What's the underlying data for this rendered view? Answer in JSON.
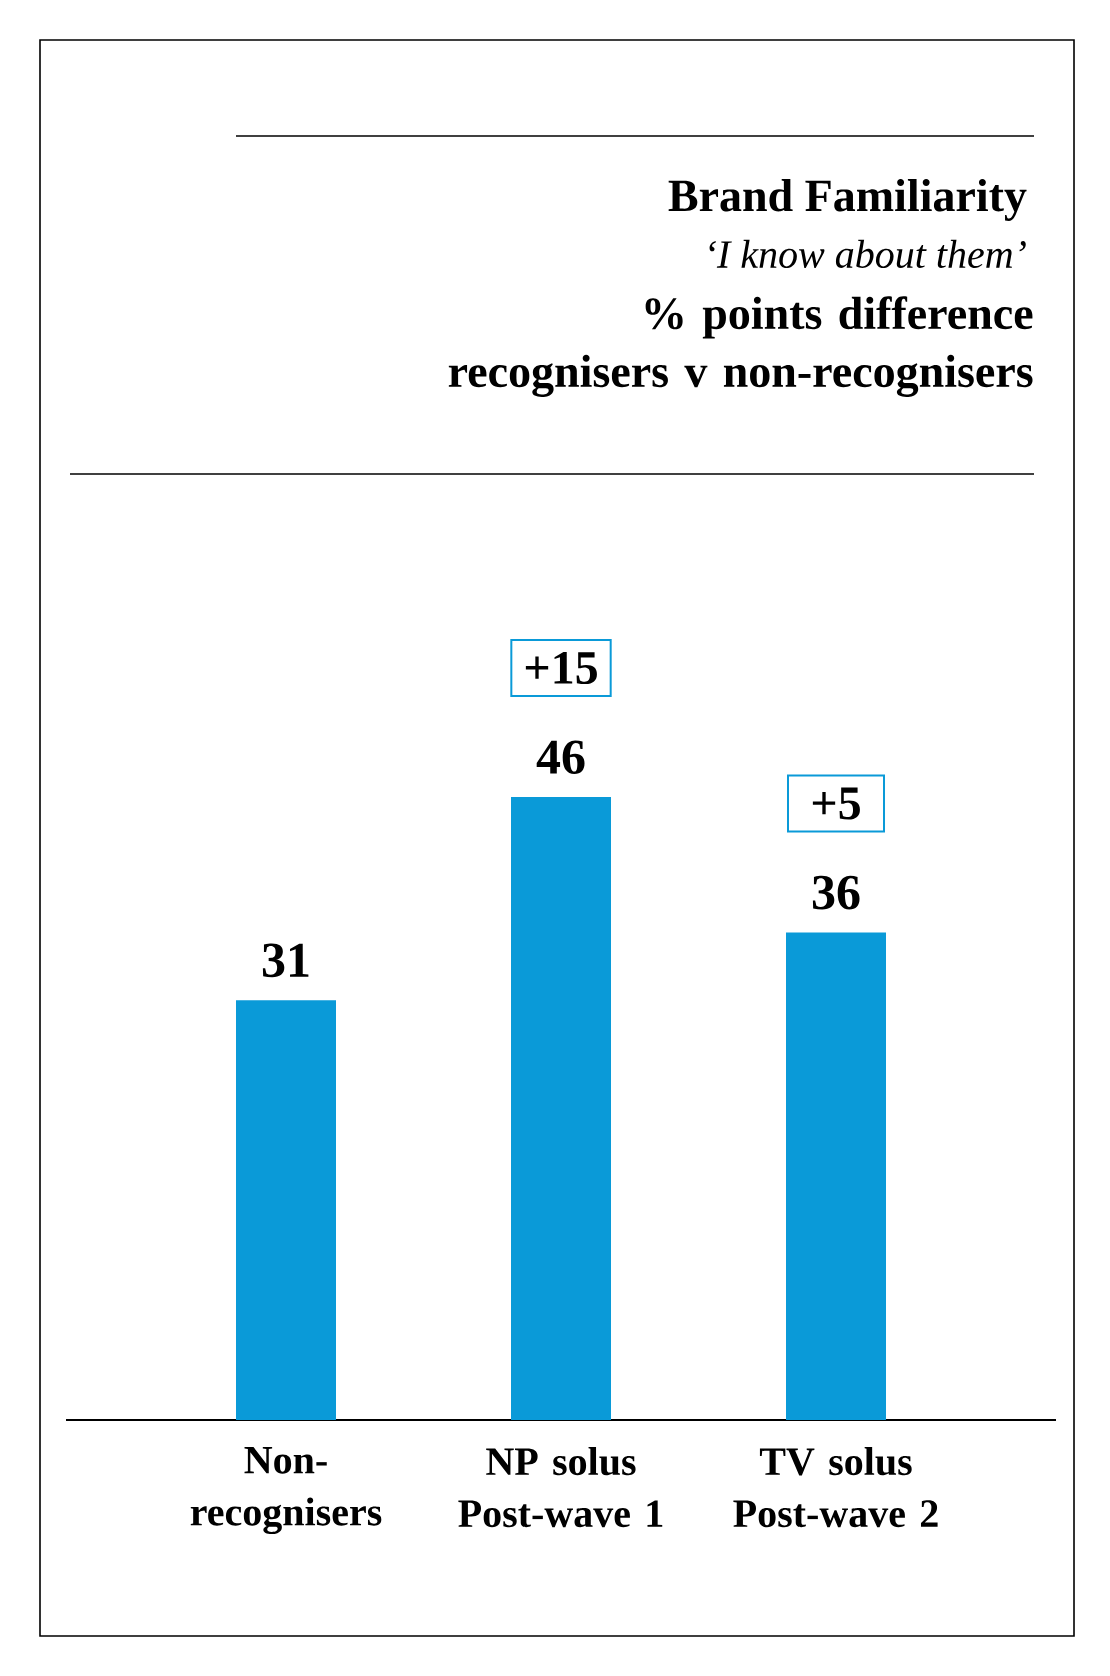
{
  "chart_data": {
    "type": "bar",
    "title": "Brand Familiarity",
    "subtitle": "‘I know about them’",
    "categories": [
      "Non-recognisers",
      "NP solus Post-wave 1",
      "TV solus Post-wave 2"
    ],
    "values": [
      31,
      46,
      36
    ],
    "color": "#0a9ad8",
    "data_labels": true,
    "annotations": [
      "% points difference recognisers v non-recognisers",
      {
        "text": "+15",
        "x": "NP solus Post-wave 1",
        "y": 46
      },
      {
        "text": "+5",
        "x": "TV solus Post-wave 2",
        "y": 36
      }
    ]
  }
}
